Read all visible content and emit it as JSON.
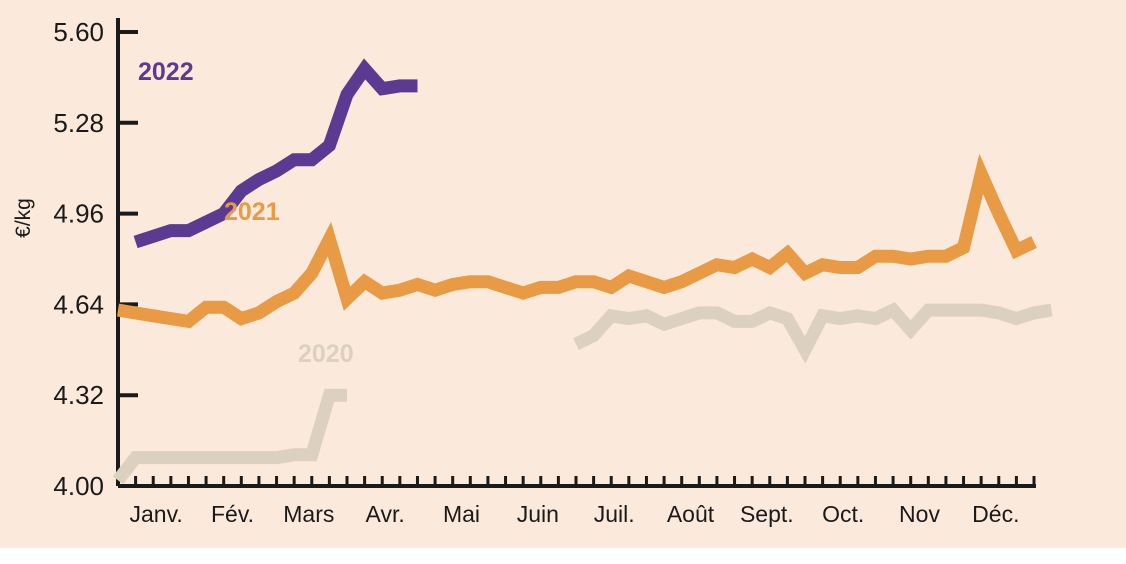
{
  "chart_data": {
    "type": "line",
    "ylabel": "€/kg",
    "ylim": [
      4.0,
      5.6
    ],
    "yticks": [
      "4.00",
      "4.32",
      "4.64",
      "4.96",
      "5.28",
      "5.60"
    ],
    "months": [
      "Janv.",
      "Fév.",
      "Mars",
      "Avr.",
      "Mai",
      "Juin",
      "Juil.",
      "Août",
      "Sept.",
      "Oct.",
      "Nov",
      "Déc."
    ],
    "x_unit": "week",
    "series": [
      {
        "name": "2022",
        "color": "#5b3a92",
        "points": [
          [
            1,
            4.86
          ],
          [
            2,
            4.88
          ],
          [
            3,
            4.9
          ],
          [
            4,
            4.9
          ],
          [
            5,
            4.93
          ],
          [
            6,
            4.96
          ],
          [
            7,
            5.04
          ],
          [
            8,
            5.08
          ],
          [
            9,
            5.11
          ],
          [
            10,
            5.15
          ],
          [
            11,
            5.15
          ],
          [
            12,
            5.2
          ],
          [
            13,
            5.38
          ],
          [
            14,
            5.47
          ],
          [
            15,
            5.4
          ],
          [
            16,
            5.41
          ],
          [
            17,
            5.41
          ]
        ]
      },
      {
        "name": "2021",
        "color": "#e99a44",
        "points": [
          [
            0,
            4.62
          ],
          [
            2,
            4.6
          ],
          [
            4,
            4.58
          ],
          [
            5,
            4.63
          ],
          [
            6,
            4.63
          ],
          [
            7,
            4.59
          ],
          [
            8,
            4.61
          ],
          [
            9,
            4.65
          ],
          [
            10,
            4.68
          ],
          [
            11,
            4.75
          ],
          [
            12,
            4.87
          ],
          [
            13,
            4.66
          ],
          [
            14,
            4.72
          ],
          [
            15,
            4.68
          ],
          [
            16,
            4.69
          ],
          [
            17,
            4.71
          ],
          [
            18,
            4.69
          ],
          [
            19,
            4.71
          ],
          [
            20,
            4.72
          ],
          [
            21,
            4.72
          ],
          [
            22,
            4.7
          ],
          [
            23,
            4.68
          ],
          [
            24,
            4.7
          ],
          [
            25,
            4.7
          ],
          [
            26,
            4.72
          ],
          [
            27,
            4.72
          ],
          [
            28,
            4.7
          ],
          [
            29,
            4.74
          ],
          [
            30,
            4.72
          ],
          [
            31,
            4.7
          ],
          [
            32,
            4.72
          ],
          [
            33,
            4.75
          ],
          [
            34,
            4.78
          ],
          [
            35,
            4.77
          ],
          [
            36,
            4.8
          ],
          [
            37,
            4.77
          ],
          [
            38,
            4.82
          ],
          [
            39,
            4.75
          ],
          [
            40,
            4.78
          ],
          [
            41,
            4.77
          ],
          [
            42,
            4.77
          ],
          [
            43,
            4.81
          ],
          [
            44,
            4.81
          ],
          [
            45,
            4.8
          ],
          [
            46,
            4.81
          ],
          [
            47,
            4.81
          ],
          [
            48,
            4.84
          ],
          [
            49,
            5.1
          ],
          [
            50,
            4.96
          ],
          [
            51,
            4.83
          ],
          [
            52,
            4.86
          ]
        ]
      },
      {
        "name": "2020",
        "color": "#dcd0c0",
        "segments": [
          [
            [
              0,
              4.02
            ],
            [
              1,
              4.1
            ],
            [
              2,
              4.1
            ],
            [
              3,
              4.1
            ],
            [
              4,
              4.1
            ],
            [
              5,
              4.1
            ],
            [
              6,
              4.1
            ],
            [
              7,
              4.1
            ],
            [
              8,
              4.1
            ],
            [
              9,
              4.1
            ],
            [
              10,
              4.11
            ],
            [
              11,
              4.11
            ],
            [
              12,
              4.32
            ],
            [
              13,
              4.32
            ]
          ],
          [
            [
              26,
              4.5
            ],
            [
              27,
              4.53
            ],
            [
              28,
              4.6
            ],
            [
              29,
              4.59
            ],
            [
              30,
              4.6
            ],
            [
              31,
              4.57
            ],
            [
              32,
              4.59
            ],
            [
              33,
              4.61
            ],
            [
              34,
              4.61
            ],
            [
              35,
              4.58
            ],
            [
              36,
              4.58
            ],
            [
              37,
              4.61
            ],
            [
              38,
              4.59
            ],
            [
              39,
              4.48
            ],
            [
              40,
              4.6
            ],
            [
              41,
              4.59
            ],
            [
              42,
              4.6
            ],
            [
              43,
              4.59
            ],
            [
              44,
              4.62
            ],
            [
              45,
              4.55
            ],
            [
              46,
              4.62
            ],
            [
              47,
              4.62
            ],
            [
              48,
              4.62
            ],
            [
              49,
              4.62
            ],
            [
              50,
              4.61
            ],
            [
              51,
              4.59
            ],
            [
              52,
              4.61
            ],
            [
              53,
              4.62
            ]
          ]
        ]
      }
    ],
    "series_labels": [
      "2022",
      "2021",
      "2020"
    ]
  }
}
